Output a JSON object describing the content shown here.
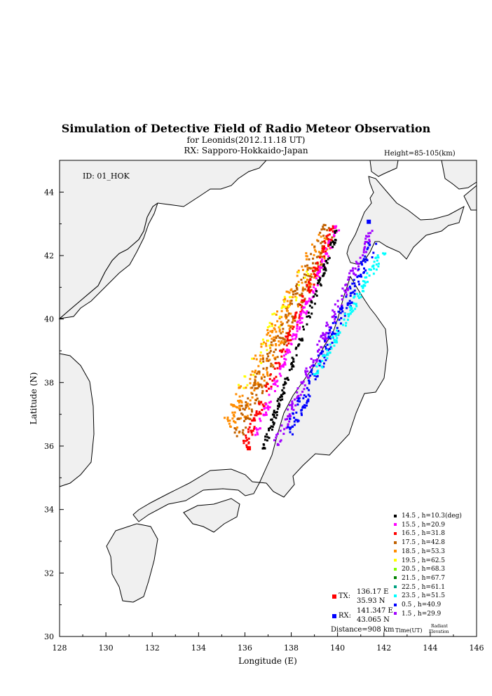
{
  "title": "Simulation of Detective Field of Radio Meteor Observation",
  "subtitle1": "for Leonids(2012.11.18 UT)",
  "subtitle2": "RX: Sapporo-Hokkaido-Japan",
  "height_label": "Height=85-105(km)",
  "id_label": "ID: 01_HOK",
  "axes": {
    "xlabel": "Longitude (E)",
    "ylabel": "Latitude (N)",
    "xlim": [
      128,
      146
    ],
    "ylim": [
      30,
      45
    ],
    "xticks": [
      "128",
      "130",
      "132",
      "134",
      "136",
      "138",
      "140",
      "142",
      "144",
      "146"
    ],
    "yticks": [
      "30",
      "32",
      "34",
      "36",
      "38",
      "40",
      "42",
      "44"
    ]
  },
  "colors": {
    "land": "#f0f0f0",
    "coast": "#000000",
    "frame": "#000000",
    "tx": "#ff0000",
    "rx": "#0000ff"
  },
  "legend": [
    {
      "time": "14.5",
      "h": "h=10.3(deg)",
      "color": "#000000"
    },
    {
      "time": "15.5",
      "h": "h=20.9",
      "color": "#ff00ff"
    },
    {
      "time": "16.5",
      "h": "h=31.8",
      "color": "#ff0000"
    },
    {
      "time": "17.5",
      "h": "h=42.8",
      "color": "#c06000"
    },
    {
      "time": "18.5",
      "h": "h=53.3",
      "color": "#ff8c00"
    },
    {
      "time": "19.5",
      "h": "h=62.5",
      "color": "#ffff00"
    },
    {
      "time": "20.5",
      "h": "h=68.3",
      "color": "#80ff00"
    },
    {
      "time": "21.5",
      "h": "h=67.7",
      "color": "#008000"
    },
    {
      "time": "22.5",
      "h": "h=61.1",
      "color": "#00a080"
    },
    {
      "time": "23.5",
      "h": "h=51.5",
      "color": "#00ffff"
    },
    {
      "time": "0.5",
      "h": "h=40.9",
      "color": "#0000ff"
    },
    {
      "time": "1.5",
      "h": "h=29.9",
      "color": "#a000ff"
    }
  ],
  "legend_footer": {
    "time": "Time(UT)",
    "radiant": "Radiant",
    "elevation": "Elevation"
  },
  "tx": {
    "label": "TX:",
    "lon_text": "136.17 E",
    "lat_text": "35.93 N",
    "lon": 136.17,
    "lat": 35.93
  },
  "rx": {
    "label": "RX:",
    "lon_text": "141.347 E",
    "lat_text": "43.065 N",
    "lon": 141.347,
    "lat": 43.065
  },
  "distance": "Distance=908 km",
  "detection_bands": [
    {
      "series": "18.5",
      "color": "#ff8c00",
      "x": [
        135.4,
        139.6
      ],
      "y": [
        36.6,
        42.8
      ],
      "width": 0.35,
      "n": 240
    },
    {
      "series": "17.5",
      "color": "#c06000",
      "x": [
        135.6,
        139.7
      ],
      "y": [
        36.3,
        42.9
      ],
      "width": 0.25,
      "n": 200
    },
    {
      "series": "16.5",
      "color": "#ff0000",
      "x": [
        136.0,
        139.9
      ],
      "y": [
        36.0,
        43.0
      ],
      "width": 0.12,
      "n": 170
    },
    {
      "series": "15.5",
      "color": "#ff00ff",
      "x": [
        136.4,
        140.0
      ],
      "y": [
        36.2,
        42.9
      ],
      "width": 0.1,
      "n": 150
    },
    {
      "series": "14.5",
      "color": "#000000",
      "x": [
        136.8,
        140.0
      ],
      "y": [
        35.9,
        42.8
      ],
      "width": 0.08,
      "n": 140
    },
    {
      "series": "19.5",
      "color": "#ffff00",
      "x": [
        135.7,
        138.6
      ],
      "y": [
        37.6,
        41.6
      ],
      "width": 0.25,
      "n": 40
    },
    {
      "series": "1.5",
      "color": "#a000ff",
      "x": [
        137.3,
        141.5
      ],
      "y": [
        36.0,
        42.8
      ],
      "width": 0.12,
      "n": 170
    },
    {
      "series": "0.5",
      "color": "#0000ff",
      "x": [
        137.9,
        141.6
      ],
      "y": [
        36.4,
        42.5
      ],
      "width": 0.18,
      "n": 170
    },
    {
      "series": "23.5",
      "color": "#00ffff",
      "x": [
        139.0,
        142.0
      ],
      "y": [
        38.2,
        42.2
      ],
      "width": 0.12,
      "n": 110
    }
  ]
}
